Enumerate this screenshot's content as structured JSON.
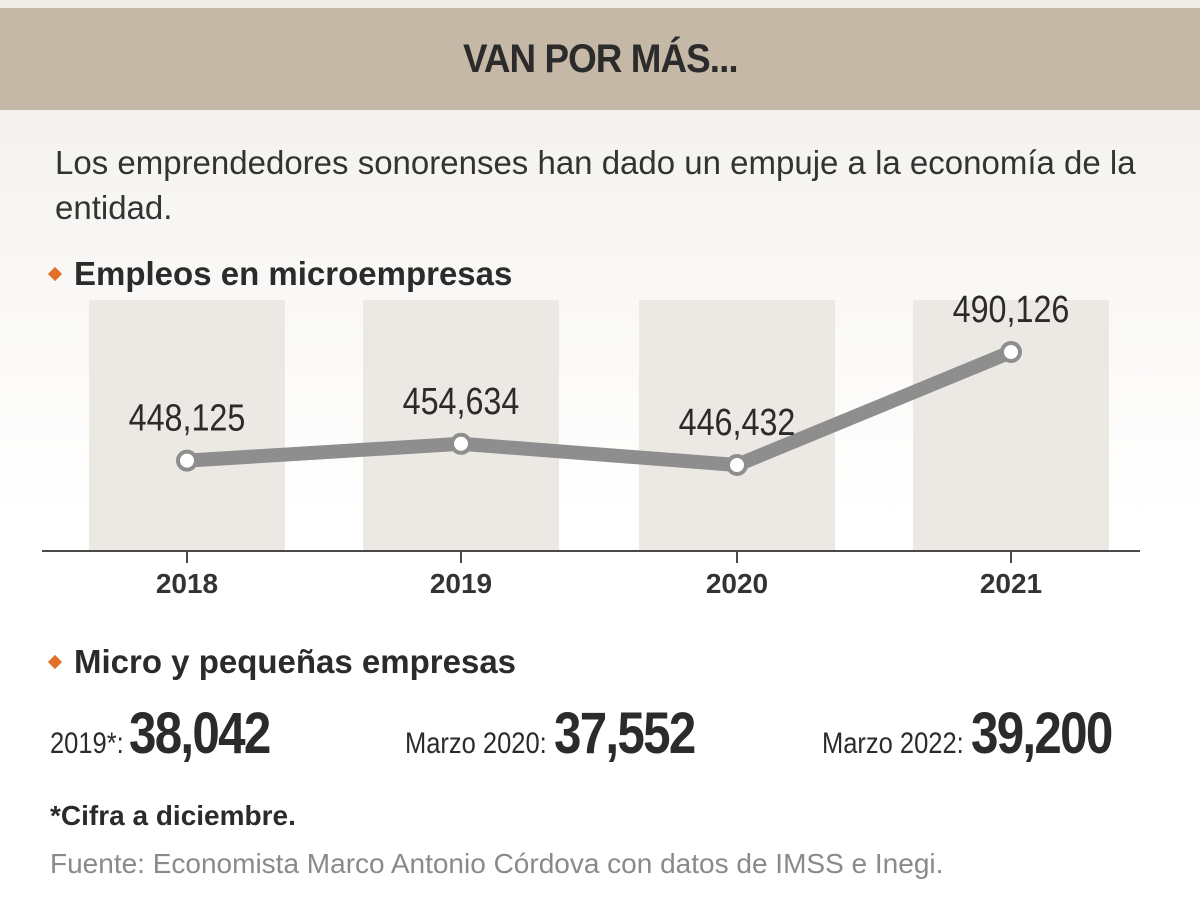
{
  "header": {
    "title": "VAN POR MÁS..."
  },
  "intro": "Los emprendedores sonorenses han dado un empuje a la economía de la entidad.",
  "chart_data": {
    "type": "line",
    "title": "Empleos en microempresas",
    "categories": [
      "2018",
      "2019",
      "2020",
      "2021"
    ],
    "values": [
      448125,
      454634,
      446432,
      490126
    ],
    "data_labels": [
      "448,125",
      "454,634",
      "446,432",
      "490,126"
    ],
    "line_color": "#8e8e8e",
    "column_color": "#ece8e3",
    "grid": false
  },
  "small_business": {
    "title": "Micro y pequeñas empresas",
    "stats": [
      {
        "label": "2019*:",
        "value": "38,042"
      },
      {
        "label": "Marzo 2020:",
        "value": "37,552"
      },
      {
        "label": "Marzo 2022:",
        "value": "39,200"
      }
    ]
  },
  "footnote": "*Cifra a diciembre.",
  "source": "Fuente: Economista Marco Antonio Córdova con datos de IMSS e Inegi.",
  "colors": {
    "header_bg": "#c6b8a6",
    "bullet": "#e2702a",
    "text": "#2b2b2b",
    "source_text": "#8a8a8a"
  }
}
